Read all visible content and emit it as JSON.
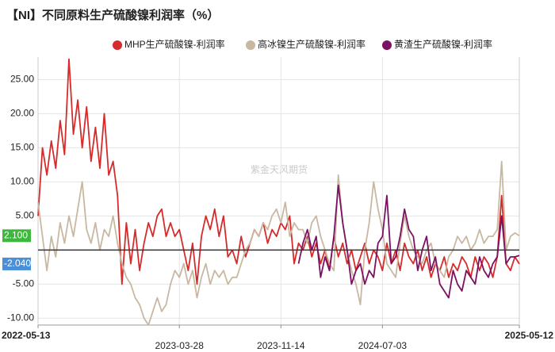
{
  "chart_data": {
    "type": "line",
    "title": "【NI】不同原料生产硫酸镍利润率（%）",
    "watermark": "紫金天风期货",
    "categories": [
      "2022-05-13",
      null,
      null,
      null,
      null,
      null,
      null,
      null,
      null,
      null,
      null,
      null,
      null,
      null,
      null,
      null,
      null,
      null,
      null,
      null,
      null,
      null,
      null,
      null,
      null,
      null,
      null,
      null,
      null,
      null,
      null,
      null,
      "2023-03-28",
      null,
      null,
      null,
      null,
      null,
      null,
      null,
      null,
      null,
      null,
      null,
      null,
      null,
      null,
      null,
      null,
      null,
      null,
      null,
      null,
      null,
      null,
      "2023-11-14",
      null,
      null,
      null,
      null,
      null,
      null,
      null,
      null,
      null,
      null,
      null,
      null,
      null,
      null,
      null,
      null,
      null,
      null,
      null,
      null,
      null,
      null,
      "2024-07-03",
      null,
      null,
      null,
      null,
      null,
      null,
      null,
      null,
      null,
      null,
      null,
      null,
      null,
      null,
      null,
      null,
      null,
      null,
      null,
      null,
      null,
      null,
      null,
      null,
      null,
      null,
      null,
      null,
      null,
      null,
      "2025-05-12"
    ],
    "ylim": [
      -11,
      28.3
    ],
    "yticks": [
      {
        "value": -10,
        "label": "-10.00"
      },
      {
        "value": -5,
        "label": "-5.00"
      },
      {
        "value": 5,
        "label": "5.00"
      },
      {
        "value": 10,
        "label": "10.00"
      },
      {
        "value": 15,
        "label": "15.00"
      },
      {
        "value": 20,
        "label": "20.00"
      },
      {
        "value": 25,
        "label": "25.00"
      }
    ],
    "grid": true,
    "legend": "top",
    "series": [
      {
        "name": "MHP生产硫酸镍-利润率",
        "color": "#d62b2b",
        "label_color": "#4a90d9",
        "values": [
          5,
          15,
          11,
          16,
          12,
          19,
          14,
          28,
          17,
          22,
          15,
          21,
          13,
          18,
          12,
          20,
          11,
          13,
          8,
          -5,
          4,
          -2,
          3,
          -3,
          1,
          4,
          2,
          5,
          6,
          2,
          4,
          2,
          3,
          0,
          -3,
          1,
          -5,
          2,
          5,
          3,
          6,
          2,
          5,
          -1,
          0,
          -2,
          2,
          -1,
          1,
          3,
          2,
          4,
          1,
          3,
          2,
          4,
          3,
          5,
          -2,
          1,
          0,
          2,
          -1,
          1,
          -2,
          0,
          -3,
          2,
          -1,
          1,
          -2,
          0,
          -3,
          -1,
          1,
          -2,
          0,
          -1,
          -3,
          1,
          -2,
          0,
          -3,
          1,
          -1,
          -2,
          0,
          -3,
          -1,
          -4,
          -2,
          -3,
          -1,
          -4,
          -2,
          -3,
          -1,
          -2,
          -4,
          -1,
          -3,
          -1,
          -2,
          -4,
          -1,
          8,
          -2,
          -3,
          -1,
          -2.04
        ],
        "value_labels": [
          null,
          null,
          null,
          null,
          null,
          null,
          null,
          null,
          null,
          null,
          null,
          null,
          null,
          null,
          null,
          null,
          null,
          null,
          null,
          null,
          null,
          null,
          null,
          null,
          null,
          null,
          null,
          null,
          null,
          null,
          null,
          null,
          null,
          null,
          null,
          null,
          null,
          null,
          null,
          null,
          null,
          null,
          null,
          null,
          null,
          null,
          null,
          null,
          null,
          null,
          null,
          null,
          null,
          null,
          null,
          null,
          null,
          null,
          null,
          null,
          null,
          null,
          null,
          null,
          null,
          null,
          null,
          null,
          null,
          null,
          null,
          null,
          null,
          null,
          null,
          null,
          null,
          null,
          null,
          null,
          null,
          null,
          null,
          null,
          null,
          null,
          null,
          null,
          null,
          null,
          null,
          null,
          null,
          null,
          null,
          null,
          null,
          null,
          null,
          null,
          null,
          null,
          null,
          null,
          null,
          null,
          null,
          null,
          null,
          "-2.040"
        ]
      },
      {
        "name": "高冰镍生产硫酸镍-利润率",
        "color": "#c8b8a2",
        "label_color": "#3cb83c",
        "values": [
          7,
          2,
          -3,
          2,
          -1,
          4,
          1,
          5,
          2,
          6,
          10,
          3,
          1,
          4,
          0,
          3,
          2,
          5,
          1,
          -2,
          -4,
          -5,
          -7,
          -8,
          -10,
          -11,
          -9,
          -7,
          -9,
          -8,
          -5,
          -3,
          -4,
          -2,
          -5,
          -3,
          -7,
          -4,
          -2,
          -5,
          -3,
          -4,
          -3,
          -5,
          -4,
          -4,
          -2,
          0,
          1,
          3,
          2,
          4,
          3,
          5,
          6,
          4,
          7,
          2,
          4,
          3,
          3,
          1,
          4,
          5,
          2,
          0,
          -2,
          -3,
          11,
          4,
          0,
          -3,
          -5,
          -8,
          0,
          4,
          10,
          6,
          3,
          -2,
          -3,
          -4,
          1,
          5,
          2,
          0,
          -1,
          -2,
          0,
          1,
          -2,
          -3,
          -4,
          -1,
          0,
          2,
          1,
          2,
          0,
          1,
          3,
          1,
          2,
          2,
          3,
          13,
          0,
          2,
          2.5,
          2.1
        ],
        "value_labels": [
          null,
          null,
          null,
          null,
          null,
          null,
          null,
          null,
          null,
          null,
          null,
          null,
          null,
          null,
          null,
          null,
          null,
          null,
          null,
          null,
          null,
          null,
          null,
          null,
          null,
          null,
          null,
          null,
          null,
          null,
          null,
          null,
          null,
          null,
          null,
          null,
          null,
          null,
          null,
          null,
          null,
          null,
          null,
          null,
          null,
          null,
          null,
          null,
          null,
          null,
          null,
          null,
          null,
          null,
          null,
          null,
          null,
          null,
          null,
          null,
          null,
          null,
          null,
          null,
          null,
          null,
          null,
          null,
          null,
          null,
          null,
          null,
          null,
          null,
          null,
          null,
          null,
          null,
          null,
          null,
          null,
          null,
          null,
          null,
          null,
          null,
          null,
          null,
          null,
          null,
          null,
          null,
          null,
          null,
          null,
          null,
          null,
          null,
          null,
          null,
          null,
          null,
          null,
          null,
          null,
          null,
          null,
          null,
          null,
          "2.100"
        ]
      },
      {
        "name": "黄渣生产硫酸镍-利润率",
        "color": "#7a1163",
        "values": [
          null,
          null,
          null,
          null,
          null,
          null,
          null,
          null,
          null,
          null,
          null,
          null,
          null,
          null,
          null,
          null,
          null,
          null,
          null,
          null,
          null,
          null,
          null,
          null,
          null,
          null,
          null,
          null,
          null,
          null,
          null,
          null,
          null,
          null,
          null,
          null,
          null,
          null,
          null,
          null,
          null,
          null,
          null,
          null,
          null,
          null,
          null,
          null,
          null,
          null,
          null,
          null,
          null,
          null,
          null,
          null,
          null,
          null,
          null,
          -2,
          1,
          3,
          0,
          2,
          -4,
          -1,
          -3,
          2,
          9.5,
          4,
          0,
          -5,
          -3,
          -2,
          -5,
          -3,
          -4,
          1,
          2,
          8,
          -2,
          -1,
          2,
          6,
          3,
          2,
          -3,
          0,
          2,
          -3,
          -1,
          -5,
          -6,
          -7,
          -3,
          -5,
          -6,
          -3,
          -4,
          -5,
          -1,
          -3,
          -4,
          -2,
          -1,
          5,
          -2,
          -1,
          -1,
          -0.8
        ]
      }
    ]
  }
}
